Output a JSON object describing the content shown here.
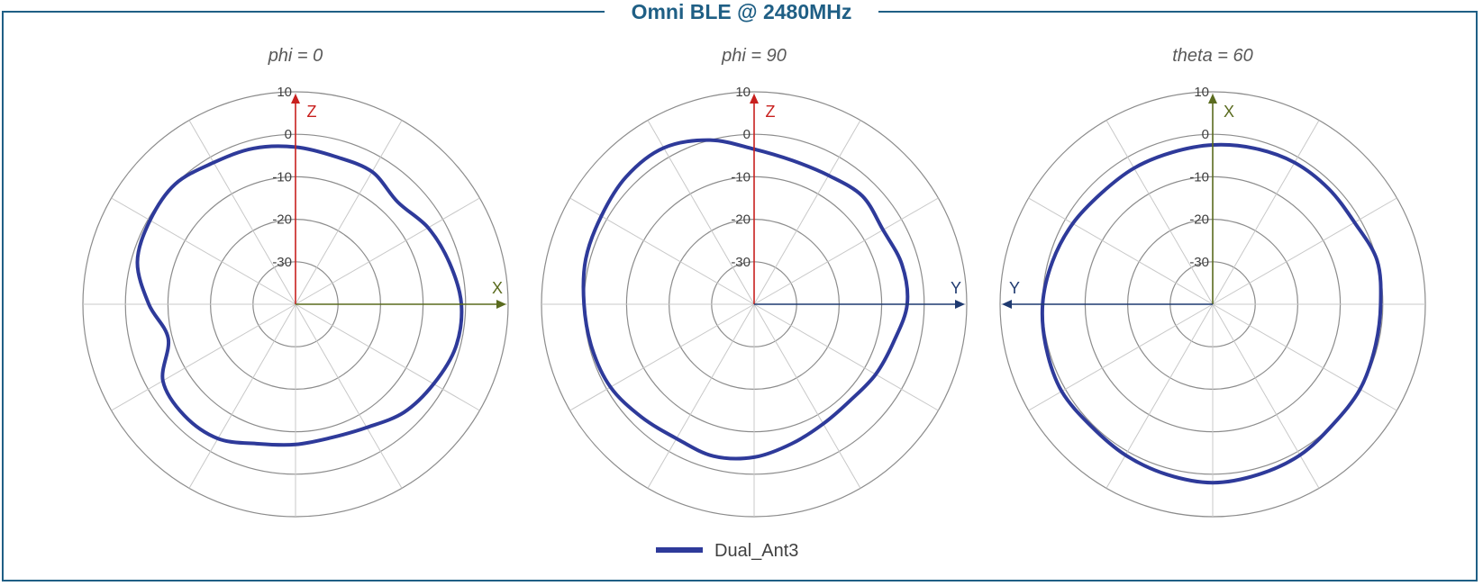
{
  "title": "Omni BLE @ 2480MHz",
  "chart_data": [
    {
      "type": "polar-line",
      "subtitle": "phi = 0",
      "r_ticks": [
        "10",
        "0",
        "-10",
        "-20",
        "-30"
      ],
      "rlim": [
        -40,
        10
      ],
      "grid": true,
      "axes": [
        {
          "label": "Z",
          "direction": "up",
          "color": "#c8201e"
        },
        {
          "label": "X",
          "direction": "right",
          "color": "#5a6b1e"
        }
      ],
      "series": [
        {
          "name": "Dual_Ant3",
          "color": "#2e3a9a",
          "angles_deg": [
            0,
            15,
            30,
            45,
            60,
            75,
            90,
            105,
            120,
            135,
            150,
            165,
            180,
            195,
            210,
            225,
            240,
            255,
            270,
            285,
            300,
            315,
            330,
            345
          ],
          "values_db": [
            -3,
            -4,
            -4,
            -6,
            -4,
            -2.5,
            -1,
            -1,
            -2.5,
            -4,
            -6.5,
            -7.5,
            -7,
            -6,
            -3.5,
            -3,
            -4,
            -9,
            -5.5,
            -1.5,
            -0.5,
            0,
            -1.5,
            -2
          ]
        }
      ]
    },
    {
      "type": "polar-line",
      "subtitle": "phi = 90",
      "r_ticks": [
        "10",
        "0",
        "-10",
        "-20",
        "-30"
      ],
      "rlim": [
        -40,
        10
      ],
      "grid": true,
      "axes": [
        {
          "label": "Z",
          "direction": "up",
          "color": "#c8201e"
        },
        {
          "label": "Y",
          "direction": "right",
          "color": "#1f3a70"
        }
      ],
      "series": [
        {
          "name": "Dual_Ant3",
          "color": "#2e3a9a",
          "angles_deg": [
            0,
            15,
            30,
            45,
            60,
            75,
            90,
            105,
            120,
            135,
            150,
            165,
            180,
            195,
            210,
            225,
            240,
            255,
            270,
            285,
            300,
            315,
            330,
            345
          ],
          "values_db": [
            -3.5,
            -5,
            -5,
            -4,
            -5,
            -4,
            -4,
            -6,
            -7,
            -8,
            -7.5,
            -6,
            -4,
            -3,
            -3.5,
            -2.5,
            -1,
            -0.5,
            0,
            1,
            1.5,
            2.5,
            2.5,
            0
          ]
        }
      ]
    },
    {
      "type": "polar-line",
      "subtitle": "theta = 60",
      "r_ticks": [
        "10",
        "0",
        "-10",
        "-20",
        "-30"
      ],
      "rlim": [
        -40,
        10
      ],
      "grid": true,
      "axes": [
        {
          "label": "X",
          "direction": "up",
          "color": "#5a6b1e"
        },
        {
          "label": "Y",
          "direction": "left",
          "color": "#1f3a70"
        }
      ],
      "series": [
        {
          "name": "Dual_Ant3",
          "color": "#2e3a9a",
          "angles_deg": [
            0,
            15,
            30,
            45,
            60,
            75,
            90,
            105,
            120,
            135,
            150,
            165,
            180,
            195,
            210,
            225,
            240,
            255,
            270,
            285,
            300,
            315,
            330,
            345
          ],
          "values_db": [
            -2.5,
            -2,
            -1.5,
            -1.5,
            -1.5,
            0,
            -0.5,
            -0.5,
            0,
            0,
            1,
            1.5,
            2,
            1.5,
            1,
            0.5,
            1,
            0.5,
            0,
            -1,
            -2,
            -3,
            -3,
            -3
          ]
        }
      ]
    }
  ],
  "legend": {
    "label": "Dual_Ant3",
    "color": "#2e3a9a"
  }
}
